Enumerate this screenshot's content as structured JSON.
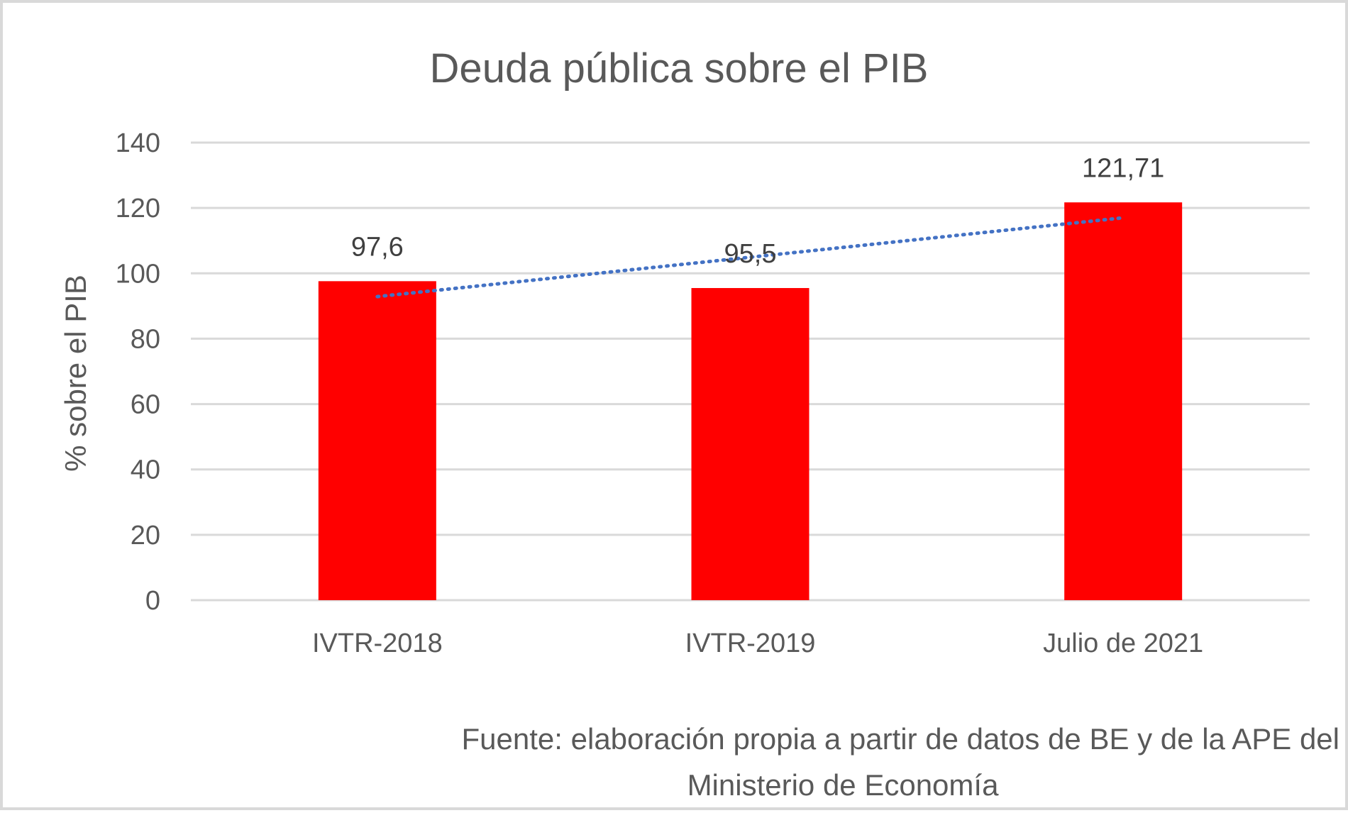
{
  "chart_data": {
    "type": "bar",
    "title": "Deuda pública sobre el PIB",
    "ylabel": "% sobre el PIB",
    "xlabel": "",
    "categories": [
      "IVTR-2018",
      "IVTR-2019",
      "Julio de 2021"
    ],
    "values": [
      97.6,
      95.5,
      121.71
    ],
    "data_labels": [
      "97,6",
      "95,5",
      "121,71"
    ],
    "ylim": [
      0,
      140
    ],
    "yticks": [
      0,
      20,
      40,
      60,
      80,
      100,
      120,
      140
    ],
    "bar_color": "#ff0000",
    "trendline": {
      "type": "linear",
      "style": "dotted",
      "color": "#4472c4"
    },
    "grid": true
  },
  "source": {
    "line1": "Fuente: elaboración propia a partir de datos de BE y de la APE del",
    "line2": "Ministerio de Economía"
  }
}
